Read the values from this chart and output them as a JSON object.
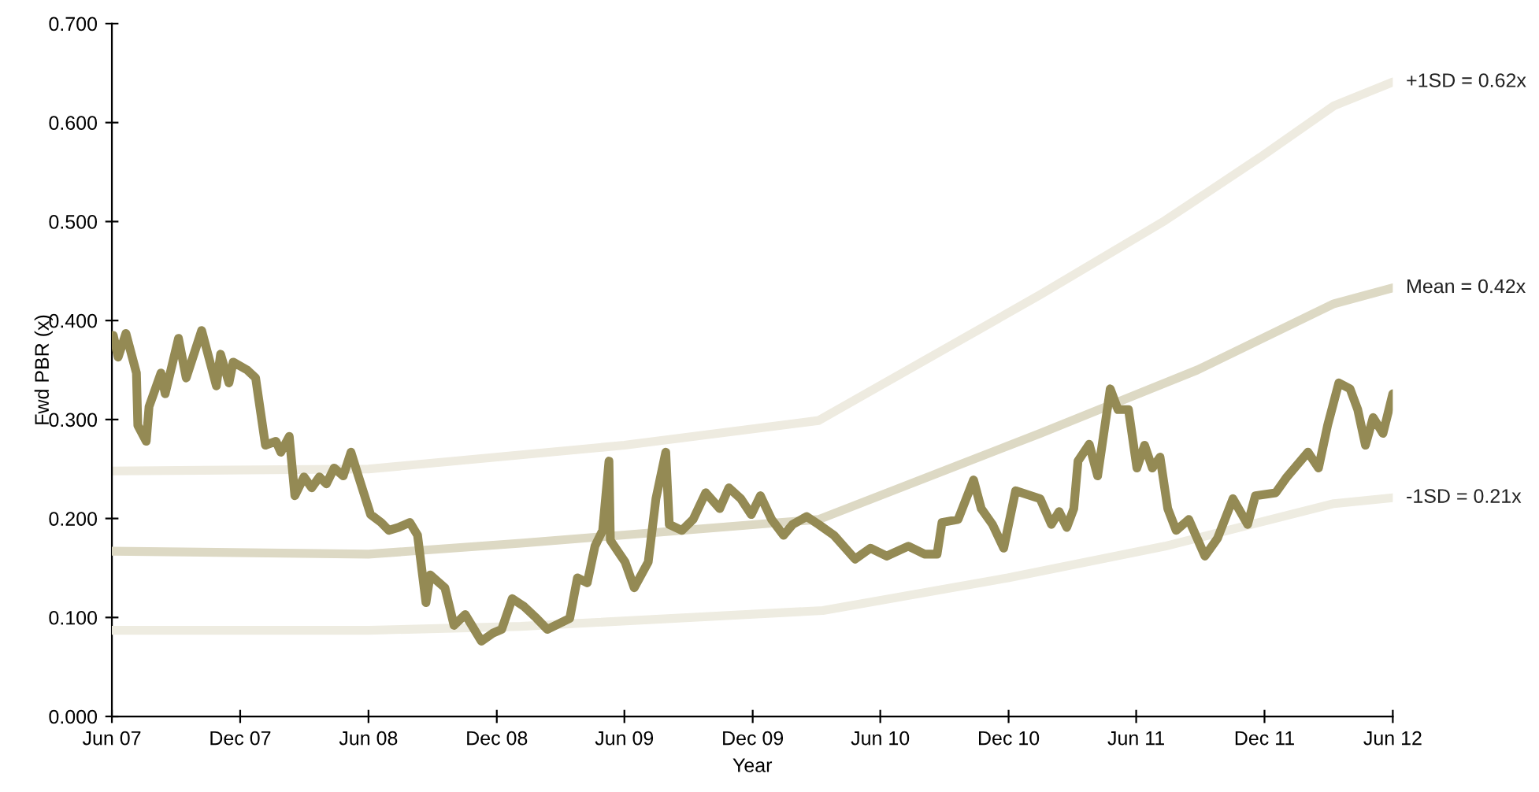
{
  "chart_data": {
    "type": "line",
    "xlabel": "Year",
    "ylabel": "Fwd PBR (x)",
    "xlim": [
      "2007-06-01",
      "2012-06-01"
    ],
    "xticks": [
      {
        "value": "2007-06-01",
        "label": "Jun 07"
      },
      {
        "value": "2007-12-01",
        "label": "Dec 07"
      },
      {
        "value": "2008-06-01",
        "label": "Jun 08"
      },
      {
        "value": "2008-12-01",
        "label": "Dec 08"
      },
      {
        "value": "2009-06-01",
        "label": "Jun 09"
      },
      {
        "value": "2009-12-01",
        "label": "Dec 09"
      },
      {
        "value": "2010-06-01",
        "label": "Jun 10"
      },
      {
        "value": "2010-12-01",
        "label": "Dec 10"
      },
      {
        "value": "2011-06-01",
        "label": "Jun 11"
      },
      {
        "value": "2011-12-01",
        "label": "Dec 11"
      },
      {
        "value": "2012-06-01",
        "label": "Jun 12"
      }
    ],
    "ylim": [
      0,
      0.7
    ],
    "yticks": [
      {
        "value": 0,
        "label": "0.000"
      },
      {
        "value": 0.1,
        "label": "0.100"
      },
      {
        "value": 0.2,
        "label": "0.200"
      },
      {
        "value": 0.3,
        "label": "0.300"
      },
      {
        "value": 0.4,
        "label": "0.400"
      },
      {
        "value": 0.5,
        "label": "0.500"
      },
      {
        "value": 0.6,
        "label": "0.600"
      },
      {
        "value": 0.7,
        "label": "0.700"
      }
    ],
    "grid": false,
    "legend": false,
    "marker": "none",
    "line_style": "solid",
    "series": [
      {
        "name": "+1SD = 0.62x",
        "color": "#eeebe0",
        "x": [
          "2007-06-01",
          "2008-06-01",
          "2009-06-01",
          "2010-03-05",
          "2011-01-15",
          "2011-07-12",
          "2011-11-25",
          "2012-03-09",
          "2012-06-01"
        ],
        "values": [
          0.248,
          0.25,
          0.274,
          0.299,
          0.426,
          0.501,
          0.565,
          0.617,
          0.641
        ]
      },
      {
        "name": "Mean = 0.42x",
        "color": "#ddd9c4",
        "x": [
          "2007-06-01",
          "2008-06-01",
          "2009-01-04",
          "2010-03-05",
          "2011-01-15",
          "2011-08-27",
          "2012-03-09",
          "2012-06-01"
        ],
        "values": [
          0.167,
          0.164,
          0.175,
          0.199,
          0.286,
          0.35,
          0.417,
          0.433
        ]
      },
      {
        "name": "-1SD = 0.21x",
        "color": "#eeece1",
        "x": [
          "2007-06-01",
          "2008-06-01",
          "2009-01-04",
          "2010-03-11",
          "2010-11-30",
          "2011-07-12",
          "2012-03-09",
          "2012-06-01"
        ],
        "values": [
          0.087,
          0.087,
          0.091,
          0.107,
          0.14,
          0.172,
          0.215,
          0.221
        ]
      },
      {
        "color": "#948a54",
        "x": [
          "2007-06-03",
          "2007-06-10",
          "2007-06-21",
          "2007-07-06",
          "2007-07-08",
          "2007-07-20",
          "2007-07-24",
          "2007-08-10",
          "2007-08-16",
          "2007-09-04",
          "2007-09-15",
          "2007-10-07",
          "2007-10-28",
          "2007-11-03",
          "2007-11-15",
          "2007-11-21",
          "2007-12-11",
          "2007-12-23",
          "2008-01-06",
          "2008-01-21",
          "2008-01-28",
          "2008-02-09",
          "2008-02-17",
          "2008-03-01",
          "2008-03-12",
          "2008-03-23",
          "2008-04-02",
          "2008-04-13",
          "2008-04-26",
          "2008-05-07",
          "2008-05-18",
          "2008-06-04",
          "2008-06-19",
          "2008-06-30",
          "2008-07-14",
          "2008-07-30",
          "2008-08-10",
          "2008-08-22",
          "2008-08-28",
          "2008-09-18",
          "2008-10-01",
          "2008-10-17",
          "2008-11-09",
          "2008-11-25",
          "2008-12-08",
          "2008-12-23",
          "2009-01-09",
          "2009-01-27",
          "2009-02-11",
          "2009-03-15",
          "2009-03-26",
          "2009-04-09",
          "2009-04-20",
          "2009-05-01",
          "2009-05-10",
          "2009-05-12",
          "2009-06-02",
          "2009-06-15",
          "2009-07-05",
          "2009-07-16",
          "2009-07-30",
          "2009-08-04",
          "2009-08-22",
          "2009-09-07",
          "2009-09-25",
          "2009-10-15",
          "2009-10-28",
          "2009-11-14",
          "2009-11-29",
          "2009-12-12",
          "2009-12-28",
          "2010-01-14",
          "2010-01-27",
          "2010-02-16",
          "2010-03-05",
          "2010-03-27",
          "2010-04-26",
          "2010-05-18",
          "2010-06-10",
          "2010-07-11",
          "2010-08-03",
          "2010-08-21",
          "2010-08-28",
          "2010-09-20",
          "2010-10-12",
          "2010-10-23",
          "2010-11-08",
          "2010-11-24",
          "2010-12-11",
          "2011-01-15",
          "2011-01-31",
          "2011-02-11",
          "2011-02-22",
          "2011-03-04",
          "2011-03-10",
          "2011-03-26",
          "2011-04-07",
          "2011-04-25",
          "2011-05-06",
          "2011-05-21",
          "2011-06-02",
          "2011-06-13",
          "2011-06-24",
          "2011-07-05",
          "2011-07-16",
          "2011-07-28",
          "2011-08-15",
          "2011-09-07",
          "2011-09-25",
          "2011-10-17",
          "2011-11-07",
          "2011-11-18",
          "2011-12-17",
          "2012-01-02",
          "2012-02-01",
          "2012-02-16",
          "2012-02-29",
          "2012-03-16",
          "2012-04-01",
          "2012-04-12",
          "2012-04-23",
          "2012-05-04",
          "2012-05-18",
          "2012-06-01"
        ],
        "values": [
          0.385,
          0.363,
          0.387,
          0.347,
          0.294,
          0.278,
          0.313,
          0.347,
          0.326,
          0.382,
          0.342,
          0.39,
          0.334,
          0.366,
          0.337,
          0.358,
          0.35,
          0.342,
          0.274,
          0.278,
          0.267,
          0.283,
          0.223,
          0.242,
          0.231,
          0.242,
          0.235,
          0.251,
          0.243,
          0.267,
          0.242,
          0.204,
          0.196,
          0.188,
          0.191,
          0.196,
          0.183,
          0.115,
          0.143,
          0.13,
          0.092,
          0.103,
          0.076,
          0.084,
          0.088,
          0.119,
          0.111,
          0.099,
          0.088,
          0.099,
          0.14,
          0.135,
          0.172,
          0.188,
          0.258,
          0.178,
          0.156,
          0.13,
          0.156,
          0.22,
          0.267,
          0.194,
          0.188,
          0.199,
          0.226,
          0.21,
          0.231,
          0.22,
          0.204,
          0.223,
          0.199,
          0.183,
          0.194,
          0.202,
          0.194,
          0.183,
          0.159,
          0.17,
          0.162,
          0.172,
          0.164,
          0.164,
          0.196,
          0.199,
          0.239,
          0.21,
          0.194,
          0.17,
          0.228,
          0.22,
          0.194,
          0.207,
          0.191,
          0.21,
          0.258,
          0.275,
          0.243,
          0.331,
          0.31,
          0.31,
          0.251,
          0.274,
          0.251,
          0.262,
          0.21,
          0.188,
          0.199,
          0.162,
          0.18,
          0.22,
          0.194,
          0.223,
          0.226,
          0.242,
          0.267,
          0.251,
          0.294,
          0.337,
          0.331,
          0.31,
          0.274,
          0.302,
          0.286,
          0.326
        ]
      }
    ]
  }
}
